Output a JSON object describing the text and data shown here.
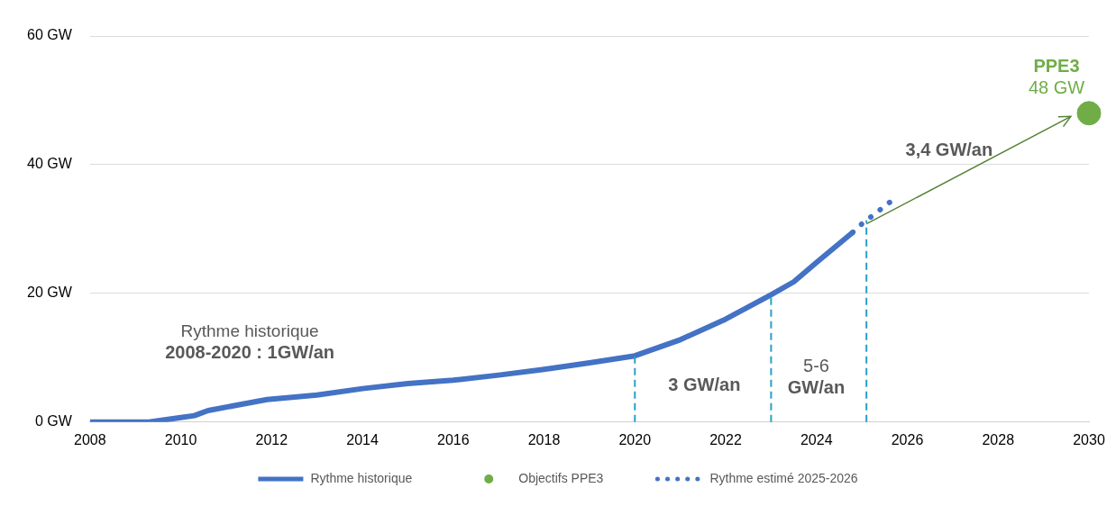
{
  "chart_data": {
    "type": "line",
    "xlim": [
      2008,
      2030
    ],
    "xticks": [
      2008,
      2010,
      2012,
      2014,
      2016,
      2018,
      2020,
      2022,
      2024,
      2026,
      2028,
      2030
    ],
    "ylim": [
      0,
      60
    ],
    "yticks": [
      {
        "value": 0,
        "label": "0 GW"
      },
      {
        "value": 20,
        "label": "20 GW"
      },
      {
        "value": 40,
        "label": "40 GW"
      },
      {
        "value": 60,
        "label": "60 GW"
      }
    ],
    "grid": "y",
    "legend": "bottom",
    "series": [
      {
        "name": "Rythme historique",
        "color": "#4472c4",
        "line_style": "solid",
        "marker": "none",
        "x": [
          2008,
          2009.3,
          2010,
          2010.3,
          2010.6,
          2011.9,
          2013,
          2014,
          2015,
          2016,
          2017,
          2018,
          2019,
          2020,
          2021,
          2022,
          2023,
          2023.5,
          2024,
          2024.8
        ],
        "values": [
          0,
          0,
          0.7,
          1,
          1.8,
          3.5,
          4.2,
          5.2,
          6,
          6.5,
          7.3,
          8.2,
          9.2,
          10.3,
          12.8,
          16,
          19.8,
          21.8,
          24.8,
          29.5
        ]
      },
      {
        "name": "Objectifs PPE3",
        "type": "scatter",
        "color": "#70ad47",
        "marker": "circle",
        "x": [
          2030
        ],
        "values": [
          48
        ]
      },
      {
        "name": "Rythme estimé 2025-2026",
        "color": "#4472c4",
        "line_style": "dotted",
        "marker": "none",
        "x": [
          2024.8,
          2025,
          2025.75
        ],
        "values": [
          29.5,
          30.8,
          34.9
        ]
      },
      {
        "color": "#548235",
        "line_style": "solid",
        "marker": "none",
        "x": [
          2025.1,
          2029.6
        ],
        "values": [
          30.8,
          47.5
        ]
      }
    ],
    "ref_lines": [
      {
        "axis": "x",
        "value": 2020,
        "color": "#2aa0c8",
        "line_style": "dashed"
      },
      {
        "axis": "x",
        "value": 2023,
        "color": "#2aa0c8",
        "line_style": "dashed"
      },
      {
        "axis": "x",
        "value": 2025.1,
        "color": "#2aa0c8",
        "line_style": "dashed"
      }
    ],
    "annotations": [
      "Rythme historique\n2008-2020 : 1GW/an",
      "3 GW/an",
      "5-6\nGW/an",
      "3,4 GW/an",
      {
        "text": "PPE3\n48 GW",
        "x": 2030,
        "y": 48
      }
    ]
  }
}
